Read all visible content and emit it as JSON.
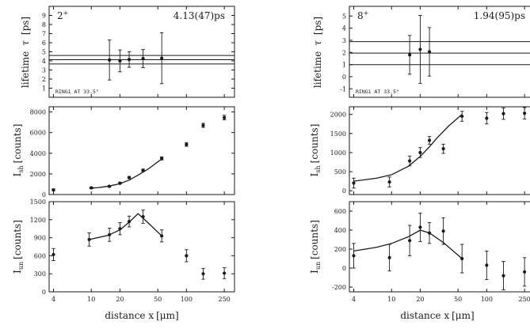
{
  "chart_data": [
    {
      "panel": "left-lifetime",
      "type": "scatter",
      "state_label": "2",
      "state_sup": "+",
      "lifetime_value": "4.13(47)ps",
      "annotation": "RING1 AT 33.5°",
      "ylabel_text": "lifetime",
      "ylabel_symbol": "τ",
      "ylabel_unit": "[ps]",
      "ylim": [
        0,
        10
      ],
      "yticks": [
        1,
        2,
        3,
        4,
        5,
        6,
        7,
        8,
        9
      ],
      "hlines": [
        3.66,
        4.13,
        4.6
      ],
      "points": [
        {
          "x": 15.5,
          "y": 4.1,
          "err": 2.2
        },
        {
          "x": 20,
          "y": 4.0,
          "err": 1.2
        },
        {
          "x": 25,
          "y": 4.15,
          "err": 0.85
        },
        {
          "x": 35,
          "y": 4.25,
          "err": 1.0
        },
        {
          "x": 55,
          "y": 4.3,
          "err": 2.8
        }
      ]
    },
    {
      "panel": "left-ish",
      "type": "scatter",
      "ylabel_main": "I",
      "ylabel_sub": "sh",
      "ylabel_unit": "[counts]",
      "ylim": [
        0,
        8500
      ],
      "yticks": [
        0,
        2000,
        4000,
        6000,
        8000
      ],
      "points": [
        {
          "x": 4,
          "y": 450,
          "err": 80
        },
        {
          "x": 10,
          "y": 650,
          "err": 80
        },
        {
          "x": 15.5,
          "y": 800,
          "err": 80
        },
        {
          "x": 20,
          "y": 1100,
          "err": 90
        },
        {
          "x": 25,
          "y": 1650,
          "err": 100
        },
        {
          "x": 35,
          "y": 2350,
          "err": 120
        },
        {
          "x": 55,
          "y": 3500,
          "err": 150
        },
        {
          "x": 100,
          "y": 4850,
          "err": 180
        },
        {
          "x": 150,
          "y": 6700,
          "err": 200
        },
        {
          "x": 250,
          "y": 7450,
          "err": 220
        }
      ],
      "curve": [
        {
          "x": 9.5,
          "y": 600
        },
        {
          "x": 12,
          "y": 680
        },
        {
          "x": 15,
          "y": 800
        },
        {
          "x": 20,
          "y": 1050
        },
        {
          "x": 25,
          "y": 1400
        },
        {
          "x": 30,
          "y": 1800
        },
        {
          "x": 40,
          "y": 2500
        },
        {
          "x": 55,
          "y": 3450
        }
      ]
    },
    {
      "panel": "left-iun",
      "type": "scatter",
      "ylabel_main": "I",
      "ylabel_sub": "un",
      "ylabel_unit": "[counts]",
      "ylim": [
        0,
        1500
      ],
      "yticks": [
        0,
        300,
        600,
        900,
        1200,
        1500
      ],
      "points": [
        {
          "x": 4,
          "y": 620,
          "err": 100
        },
        {
          "x": 9.5,
          "y": 870,
          "err": 110
        },
        {
          "x": 15.5,
          "y": 950,
          "err": 110
        },
        {
          "x": 20,
          "y": 1050,
          "err": 100
        },
        {
          "x": 25,
          "y": 1170,
          "err": 90
        },
        {
          "x": 35,
          "y": 1250,
          "err": 110
        },
        {
          "x": 55,
          "y": 930,
          "err": 100
        },
        {
          "x": 100,
          "y": 600,
          "err": 100
        },
        {
          "x": 150,
          "y": 300,
          "err": 90
        },
        {
          "x": 250,
          "y": 310,
          "err": 90
        }
      ],
      "curve": [
        {
          "x": 9.5,
          "y": 870
        },
        {
          "x": 15,
          "y": 940
        },
        {
          "x": 20,
          "y": 1030
        },
        {
          "x": 25,
          "y": 1160
        },
        {
          "x": 31,
          "y": 1300
        },
        {
          "x": 40,
          "y": 1140
        },
        {
          "x": 55,
          "y": 930
        }
      ]
    },
    {
      "panel": "right-lifetime",
      "type": "scatter",
      "state_label": "8",
      "state_sup": "+",
      "lifetime_value": "1.94(95)ps",
      "annotation": "RING1 AT 33.5°",
      "ylabel_text": "lifetime",
      "ylabel_symbol": "τ",
      "ylabel_unit": "[ps]",
      "ylim": [
        -1.7,
        5.8
      ],
      "yticks": [
        -1,
        0,
        1,
        2,
        3,
        4,
        5
      ],
      "hlines": [
        0.99,
        1.94,
        2.89
      ],
      "points": [
        {
          "x": 15.5,
          "y": 1.8,
          "err": 1.6
        },
        {
          "x": 20,
          "y": 2.25,
          "err": 2.8
        },
        {
          "x": 25,
          "y": 2.05,
          "err": 2.0
        }
      ]
    },
    {
      "panel": "right-ish",
      "type": "scatter",
      "ylabel_main": "I",
      "ylabel_sub": "sh",
      "ylabel_unit": "[counts]",
      "ylim": [
        -100,
        2200
      ],
      "yticks": [
        0,
        500,
        1000,
        1500,
        2000
      ],
      "points": [
        {
          "x": 4,
          "y": 200,
          "err": 130
        },
        {
          "x": 9.5,
          "y": 230,
          "err": 130
        },
        {
          "x": 15.5,
          "y": 780,
          "err": 130
        },
        {
          "x": 20,
          "y": 1000,
          "err": 130
        },
        {
          "x": 25,
          "y": 1320,
          "err": 100
        },
        {
          "x": 35,
          "y": 1100,
          "err": 120
        },
        {
          "x": 55,
          "y": 1950,
          "err": 130
        },
        {
          "x": 100,
          "y": 1900,
          "err": 150
        },
        {
          "x": 150,
          "y": 2020,
          "err": 150
        },
        {
          "x": 250,
          "y": 2030,
          "err": 150
        }
      ],
      "curve": [
        {
          "x": 4,
          "y": 250
        },
        {
          "x": 7,
          "y": 330
        },
        {
          "x": 10,
          "y": 420
        },
        {
          "x": 15,
          "y": 640
        },
        {
          "x": 20,
          "y": 900
        },
        {
          "x": 25,
          "y": 1150
        },
        {
          "x": 30,
          "y": 1380
        },
        {
          "x": 40,
          "y": 1700
        },
        {
          "x": 55,
          "y": 2000
        }
      ]
    },
    {
      "panel": "right-iun",
      "type": "scatter",
      "ylabel_main": "I",
      "ylabel_sub": "un",
      "ylabel_unit": "[counts]",
      "ylim": [
        -250,
        700
      ],
      "yticks": [
        -200,
        0,
        200,
        400,
        600
      ],
      "points": [
        {
          "x": 4,
          "y": 130,
          "err": 130
        },
        {
          "x": 9.5,
          "y": 110,
          "err": 140
        },
        {
          "x": 15.5,
          "y": 290,
          "err": 160
        },
        {
          "x": 20,
          "y": 430,
          "err": 150
        },
        {
          "x": 25,
          "y": 370,
          "err": 110
        },
        {
          "x": 35,
          "y": 390,
          "err": 140
        },
        {
          "x": 55,
          "y": 100,
          "err": 150
        },
        {
          "x": 100,
          "y": 30,
          "err": 150
        },
        {
          "x": 150,
          "y": -80,
          "err": 150
        },
        {
          "x": 250,
          "y": -40,
          "err": 150
        }
      ],
      "curve": [
        {
          "x": 4,
          "y": 180
        },
        {
          "x": 7,
          "y": 220
        },
        {
          "x": 10,
          "y": 260
        },
        {
          "x": 15,
          "y": 330
        },
        {
          "x": 20,
          "y": 400
        },
        {
          "x": 25,
          "y": 370
        },
        {
          "x": 35,
          "y": 270
        },
        {
          "x": 55,
          "y": 100
        }
      ]
    }
  ],
  "x_axis": {
    "label_text": "distance x",
    "label_unit": "[μm]",
    "scale": "log",
    "xlim": [
      3.6,
      320
    ],
    "ticks": [
      4,
      10,
      20,
      50,
      100,
      250
    ]
  }
}
